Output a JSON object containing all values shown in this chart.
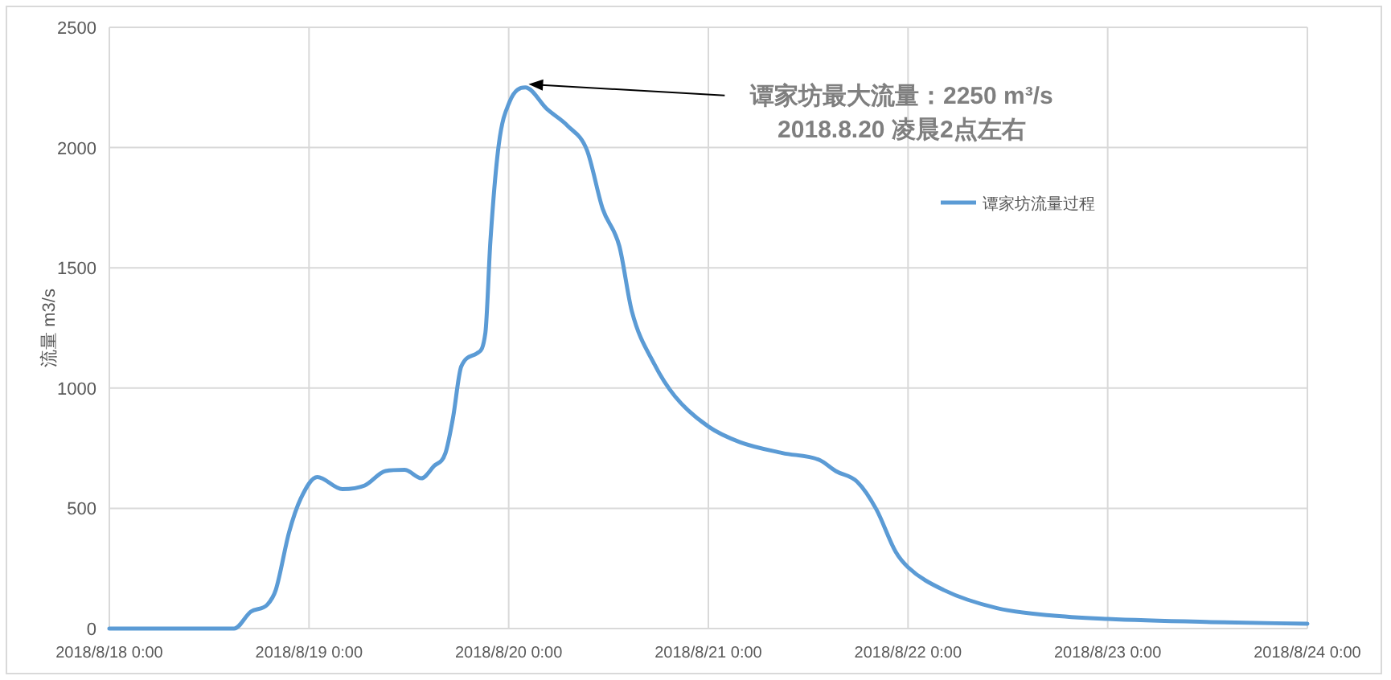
{
  "chart_data": {
    "type": "line",
    "ylabel": "流量 m3/s",
    "x": [
      "2018-08-18T00:00",
      "2018-08-18T15:00",
      "2018-08-18T17:00",
      "2018-08-18T19:00",
      "2018-08-18T20:00",
      "2018-08-18T21:36",
      "2018-08-18T23:00",
      "2018-08-19T01:00",
      "2018-08-19T04:00",
      "2018-08-19T06:42",
      "2018-08-19T09:12",
      "2018-08-19T11:30",
      "2018-08-19T13:30",
      "2018-08-19T15:00",
      "2018-08-19T16:24",
      "2018-08-19T17:18",
      "2018-08-19T18:18",
      "2018-08-19T20:12",
      "2018-08-19T21:12",
      "2018-08-19T21:48",
      "2018-08-19T22:48",
      "2018-08-20T00:06",
      "2018-08-20T02:00",
      "2018-08-20T04:36",
      "2018-08-20T07:06",
      "2018-08-20T09:24",
      "2018-08-20T11:18",
      "2018-08-20T13:18",
      "2018-08-20T14:48",
      "2018-08-20T17:30",
      "2018-08-20T20:00",
      "2018-08-21T00:00",
      "2018-08-21T03:48",
      "2018-08-21T08:54",
      "2018-08-21T13:24",
      "2018-08-21T15:18",
      "2018-08-21T17:54",
      "2018-08-21T20:12",
      "2018-08-21T22:30",
      "2018-08-22T00:00",
      "2018-08-22T04:18",
      "2018-08-22T10:42",
      "2018-08-22T17:00",
      "2018-08-23T00:00",
      "2018-08-23T12:24",
      "2018-08-24T00:00"
    ],
    "series": [
      {
        "name": "谭家坊流量过程",
        "color": "#5b9bd5",
        "values": [
          0,
          0,
          70,
          100,
          160,
          400,
          540,
          630,
          580,
          595,
          655,
          660,
          625,
          675,
          730,
          875,
          1090,
          1145,
          1230,
          1610,
          2010,
          2190,
          2250,
          2160,
          2090,
          1990,
          1745,
          1590,
          1320,
          1100,
          965,
          840,
          775,
          730,
          700,
          655,
          610,
          495,
          320,
          255,
          160,
          85,
          55,
          40,
          27,
          20
        ]
      }
    ],
    "xlim": [
      "2018-08-18T00:00",
      "2018-08-24T00:00"
    ],
    "xticks": [
      {
        "value": "2018-08-18T00:00",
        "label": "2018/8/18 0:00"
      },
      {
        "value": "2018-08-19T00:00",
        "label": "2018/8/19 0:00"
      },
      {
        "value": "2018-08-20T00:00",
        "label": "2018/8/20 0:00"
      },
      {
        "value": "2018-08-21T00:00",
        "label": "2018/8/21 0:00"
      },
      {
        "value": "2018-08-22T00:00",
        "label": "2018/8/22 0:00"
      },
      {
        "value": "2018-08-23T00:00",
        "label": "2018/8/23 0:00"
      },
      {
        "value": "2018-08-24T00:00",
        "label": "2018/8/24 0:00"
      }
    ],
    "ylim": [
      0,
      2500
    ],
    "yticks": [
      0,
      500,
      1000,
      1500,
      2000,
      2500
    ],
    "annotations": [
      "谭家坊最大流量：2250 m³/s\n2018.8.20 凌晨2点左右"
    ],
    "grid": true,
    "legend": "top right",
    "marker": "none",
    "line_style": "solid"
  }
}
